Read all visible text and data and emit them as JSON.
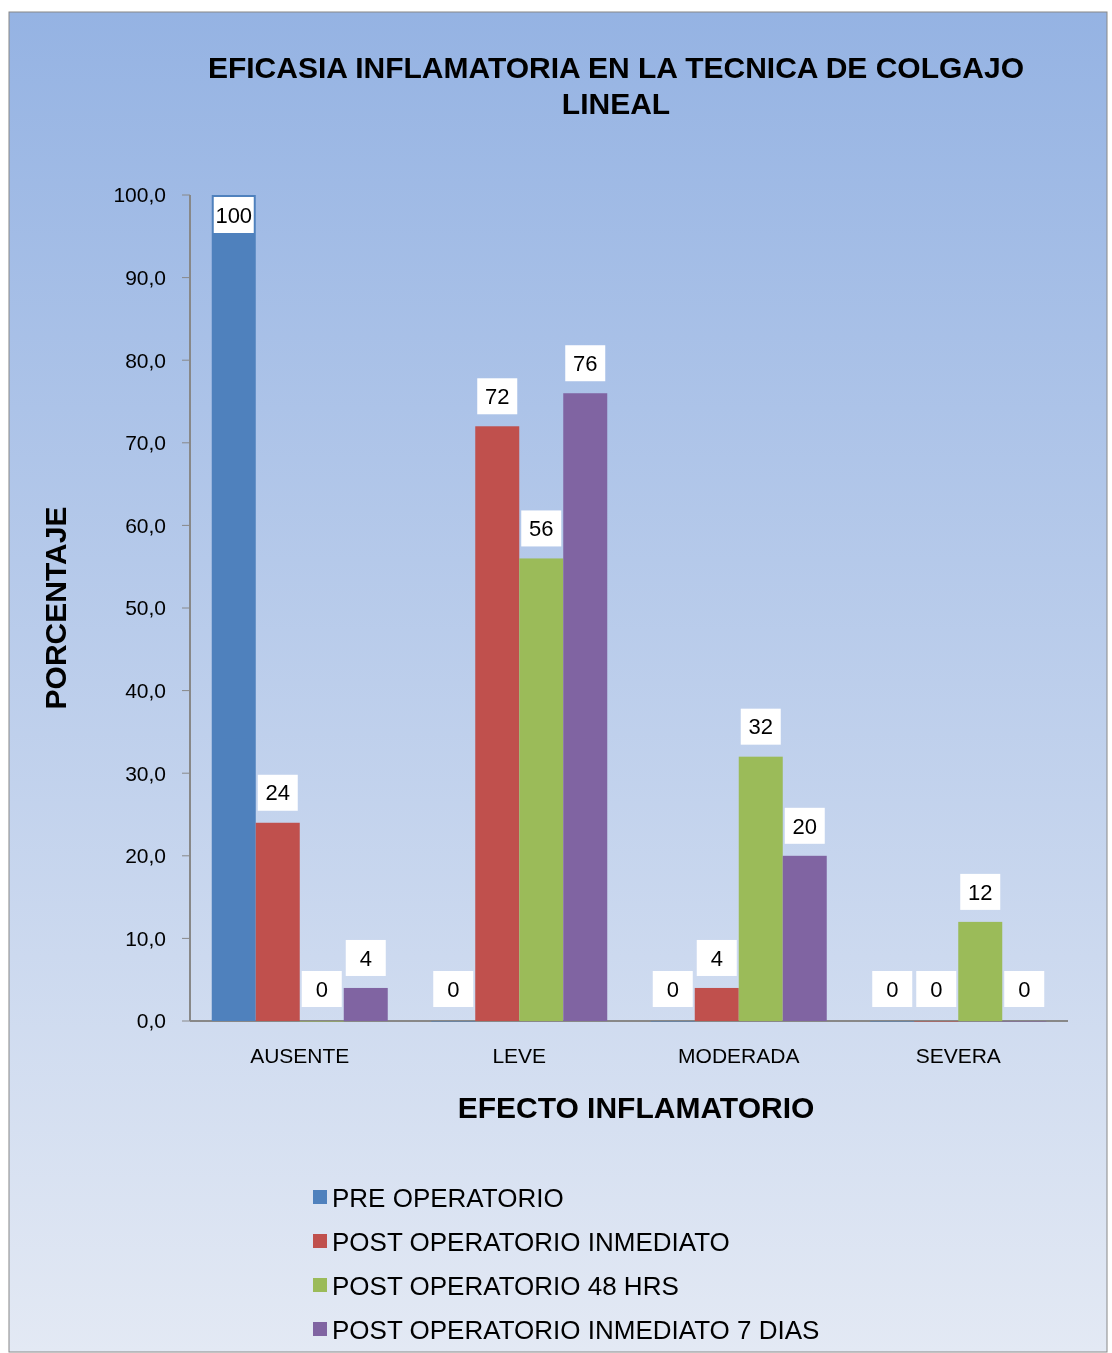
{
  "chart_data": {
    "type": "bar",
    "title": "EFICASIA INFLAMATORIA EN LA TECNICA DE COLGAJO LINEAL",
    "xlabel": "EFECTO INFLAMATORIO",
    "ylabel": "PORCENTAJE",
    "categories": [
      "AUSENTE",
      "LEVE",
      "MODERADA",
      "SEVERA"
    ],
    "series": [
      {
        "name": "PRE OPERATORIO",
        "color": "#4f81bd",
        "values": [
          100,
          0,
          0,
          0
        ]
      },
      {
        "name": "POST OPERATORIO INMEDIATO",
        "color": "#c0504d",
        "values": [
          24,
          72,
          4,
          0
        ]
      },
      {
        "name": "POST OPERATORIO 48 HRS",
        "color": "#9bbb59",
        "values": [
          0,
          56,
          32,
          12
        ]
      },
      {
        "name": "POST OPERATORIO INMEDIATO 7 DIAS",
        "color": "#8064a2",
        "values": [
          4,
          76,
          20,
          0
        ]
      }
    ],
    "ylim": [
      0,
      100
    ],
    "yticks": [
      {
        "value": 0,
        "label": "0,0"
      },
      {
        "value": 10,
        "label": "10,0"
      },
      {
        "value": 20,
        "label": "20,0"
      },
      {
        "value": 30,
        "label": "30,0"
      },
      {
        "value": 40,
        "label": "40,0"
      },
      {
        "value": 50,
        "label": "50,0"
      },
      {
        "value": 60,
        "label": "60,0"
      },
      {
        "value": 70,
        "label": "70,0"
      },
      {
        "value": 80,
        "label": "80,0"
      },
      {
        "value": 90,
        "label": "90,0"
      },
      {
        "value": 100,
        "label": "100,0"
      }
    ],
    "data_labels": true,
    "legend": "bottom",
    "grid": false
  }
}
